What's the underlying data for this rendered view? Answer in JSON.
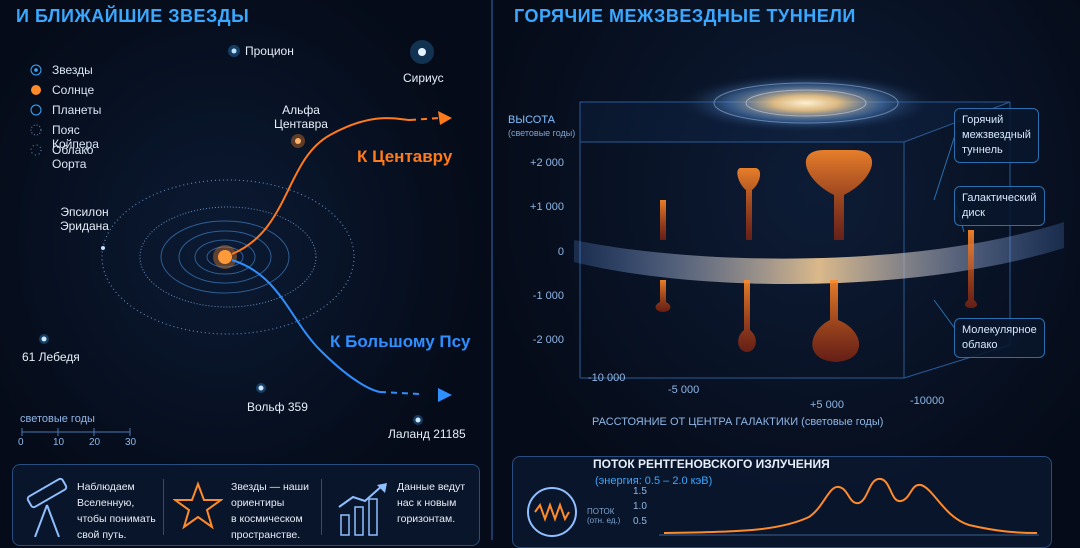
{
  "left": {
    "title": "И БЛИЖАЙШИЕ ЗВЕЗДЫ",
    "legend": [
      "Звезды",
      "Солнце",
      "Планеты",
      "Пояс Койпера",
      "Облако Оорта"
    ],
    "stars": {
      "procyon": "Процион",
      "sirius": "Сириус",
      "alpha_centauri": "Альфа\nЦентавра",
      "epsilon_eridani": "Эпсилон\nЭридана",
      "cygni": "61 Лебедя",
      "wolf": "Вольф 359",
      "lalande": "Лаланд 21185"
    },
    "routes": {
      "centaurus": "К Центавру",
      "canis_major": "К Большому Псу"
    },
    "scale": {
      "label": "световые годы",
      "ticks": [
        "0",
        "10",
        "20",
        "30"
      ]
    },
    "cards": [
      "Наблюдаем\nВселенную,\nчтобы понимать\nсвой путь.",
      "Звезды — наши\nориентиры\nв космическом\nпространстве.",
      "Данные ведут\nнас к новым\nгоризонтам."
    ]
  },
  "right": {
    "title": "ГОРЯЧИЕ МЕЖЗВЕЗДНЫЕ ТУННЕЛИ",
    "y_axis": {
      "label": "ВЫСОТА",
      "unit": "(световые годы)",
      "ticks": [
        "+2 000",
        "+1 000",
        "0",
        "-1 000",
        "-2 000"
      ]
    },
    "x_axis": {
      "label": "РАССТОЯНИЕ ОТ ЦЕНТРА ГАЛАКТИКИ (световые годы)",
      "ticks": [
        "-10 000",
        "-5 000",
        "+5 000",
        "-10000"
      ]
    },
    "callouts": [
      "Горячий\nмежзвездный\nтуннель",
      "Галактический\nдиск",
      "Молекулярное\nоблако"
    ],
    "xray": {
      "title": "ПОТОК РЕНТГЕНОВСКОГО ИЗЛУЧЕНИЯ",
      "subtitle": "(энергия: 0.5 – 2.0 кэВ)",
      "y_label": "ПОТОК\n(отн. ед.)",
      "y_ticks": [
        "1.5",
        "1.0",
        "0.5"
      ]
    }
  },
  "colors": {
    "accent": "#3aa8ff",
    "sun": "#ff8a2a",
    "route_orange": "#ff7a1a",
    "route_blue": "#2f8fff"
  }
}
